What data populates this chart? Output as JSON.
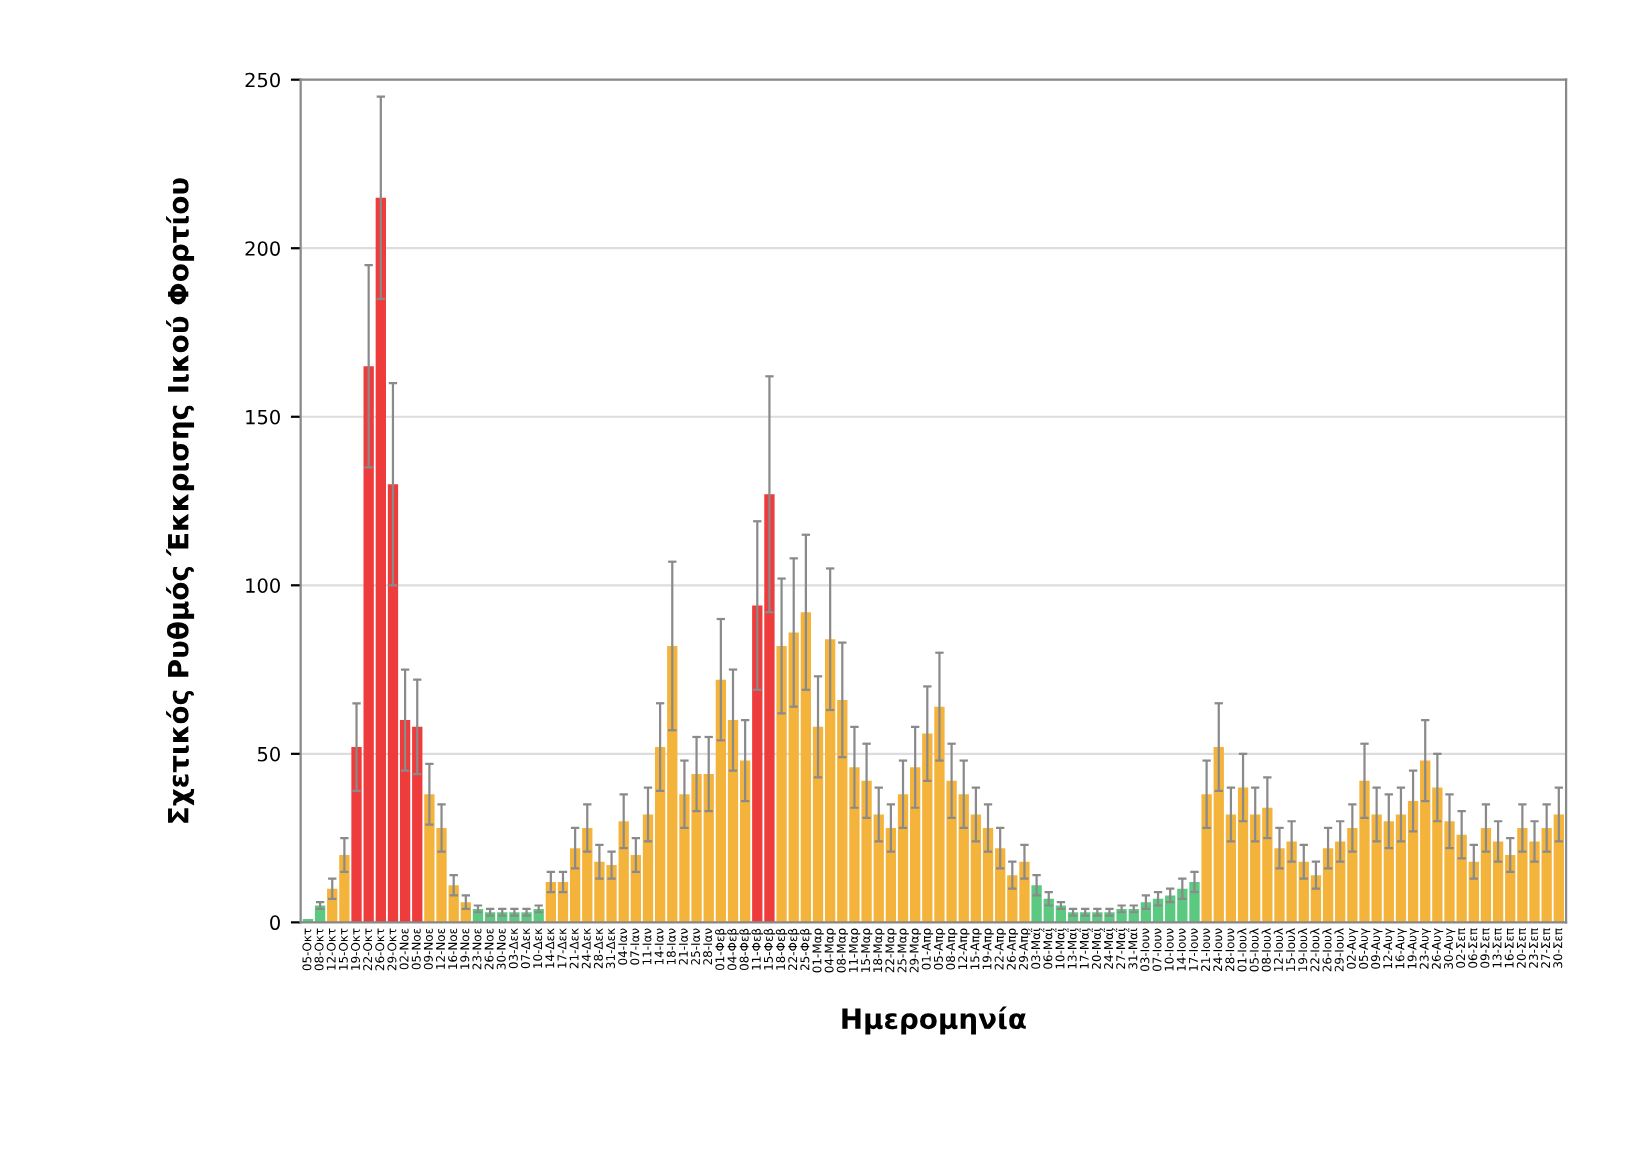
{
  "chart_data": {
    "type": "bar",
    "ylabel": "Σχετικός Ρυθμός Έκκρισης Ιικού Φορτίου",
    "xlabel": "Ημερομηνία",
    "categories": [
      "05-Οκτ",
      "08-Οκτ",
      "12-Οκτ",
      "15-Οκτ",
      "19-Οκτ",
      "22-Οκτ",
      "26-Οκτ",
      "29-Οκτ",
      "02-Νοε",
      "05-Νοε",
      "09-Νοε",
      "12-Νοε",
      "16-Νοε",
      "19-Νοε",
      "23-Νοε",
      "26-Νοε",
      "30-Νοε",
      "03-Δεκ",
      "07-Δεκ",
      "10-Δεκ",
      "14-Δεκ",
      "17-Δεκ",
      "21-Δεκ",
      "24-Δεκ",
      "28-Δεκ",
      "31-Δεκ",
      "04-Ιαν",
      "07-Ιαν",
      "11-Ιαν",
      "14-Ιαν",
      "18-Ιαν",
      "21-Ιαν",
      "25-Ιαν",
      "28-Ιαν",
      "01-Φεβ",
      "04-Φεβ",
      "08-Φεβ",
      "11-Φεβ",
      "15-Φεβ",
      "18-Φεβ",
      "22-Φεβ",
      "25-Φεβ",
      "01-Μαρ",
      "04-Μαρ",
      "08-Μαρ",
      "11-Μαρ",
      "15-Μαρ",
      "18-Μαρ",
      "22-Μαρ",
      "25-Μαρ",
      "29-Μαρ",
      "01-Απρ",
      "05-Απρ",
      "08-Απρ",
      "12-Απρ",
      "15-Απρ",
      "19-Απρ",
      "22-Απρ",
      "26-Απρ",
      "29-Απρ",
      "03-Μαΐ",
      "06-Μαΐ",
      "10-Μαΐ",
      "13-Μαΐ",
      "17-Μαΐ",
      "20-Μαΐ",
      "24-Μαΐ",
      "27-Μαΐ",
      "31-Μαΐ",
      "03-Ιουν",
      "07-Ιουν",
      "10-Ιουν",
      "14-Ιουν",
      "17-Ιουν",
      "21-Ιουν",
      "24-Ιουν",
      "28-Ιουν",
      "01-Ιουλ",
      "05-Ιουλ",
      "08-Ιουλ",
      "12-Ιουλ",
      "15-Ιουλ",
      "19-Ιουλ",
      "22-Ιουλ",
      "26-Ιουλ",
      "29-Ιουλ",
      "02-Αυγ",
      "05-Αυγ",
      "09-Αυγ",
      "12-Αυγ",
      "16-Αυγ",
      "19-Αυγ",
      "23-Αυγ",
      "26-Αυγ",
      "30-Αυγ",
      "02-Σεπ",
      "06-Σεπ",
      "09-Σεπ",
      "13-Σεπ",
      "16-Σεπ",
      "20-Σεπ",
      "23-Σεπ",
      "27-Σεπ",
      "30-Σεπ"
    ],
    "values": [
      1,
      5,
      10,
      20,
      52,
      165,
      215,
      130,
      60,
      58,
      38,
      28,
      11,
      6,
      4,
      3,
      3,
      3,
      3,
      4,
      12,
      12,
      22,
      28,
      18,
      17,
      30,
      20,
      32,
      52,
      82,
      38,
      44,
      44,
      72,
      60,
      48,
      94,
      127,
      82,
      86,
      92,
      58,
      84,
      66,
      46,
      42,
      32,
      28,
      38,
      46,
      56,
      64,
      42,
      38,
      32,
      28,
      22,
      14,
      18,
      11,
      7,
      5,
      3,
      3,
      3,
      3,
      4,
      4,
      6,
      7,
      8,
      10,
      12,
      38,
      52,
      32,
      40,
      32,
      34,
      22,
      24,
      18,
      14,
      22,
      24,
      28,
      42,
      32,
      30,
      32,
      36,
      48,
      40,
      30,
      26,
      18,
      28,
      24,
      20,
      28,
      24,
      28,
      32
    ],
    "errors": [
      null,
      1,
      3,
      5,
      13,
      30,
      30,
      30,
      15,
      14,
      9,
      7,
      3,
      2,
      1,
      1,
      1,
      1,
      1,
      1,
      3,
      3,
      6,
      7,
      5,
      4,
      8,
      5,
      8,
      13,
      25,
      10,
      11,
      11,
      18,
      15,
      12,
      25,
      35,
      20,
      22,
      23,
      15,
      21,
      17,
      12,
      11,
      8,
      7,
      10,
      12,
      14,
      16,
      11,
      10,
      8,
      7,
      6,
      4,
      5,
      3,
      2,
      1,
      1,
      1,
      1,
      1,
      1,
      1,
      2,
      2,
      2,
      3,
      3,
      10,
      13,
      8,
      10,
      8,
      9,
      6,
      6,
      5,
      4,
      6,
      6,
      7,
      11,
      8,
      8,
      8,
      9,
      12,
      10,
      8,
      7,
      5,
      7,
      6,
      5,
      7,
      6,
      7,
      8
    ],
    "colors": [
      "#5cc981",
      "#5cc981",
      "#f4b43c",
      "#f4b43c",
      "#ee3b3b",
      "#ee3b3b",
      "#ee3b3b",
      "#ee3b3b",
      "#ee3b3b",
      "#ee3b3b",
      "#f4b43c",
      "#f4b43c",
      "#f4b43c",
      "#f4b43c",
      "#5cc981",
      "#5cc981",
      "#5cc981",
      "#5cc981",
      "#5cc981",
      "#5cc981",
      "#f4b43c",
      "#f4b43c",
      "#f4b43c",
      "#f4b43c",
      "#f4b43c",
      "#f4b43c",
      "#f4b43c",
      "#f4b43c",
      "#f4b43c",
      "#f4b43c",
      "#f4b43c",
      "#f4b43c",
      "#f4b43c",
      "#f4b43c",
      "#f4b43c",
      "#f4b43c",
      "#f4b43c",
      "#ee3b3b",
      "#ee3b3b",
      "#f4b43c",
      "#f4b43c",
      "#f4b43c",
      "#f4b43c",
      "#f4b43c",
      "#f4b43c",
      "#f4b43c",
      "#f4b43c",
      "#f4b43c",
      "#f4b43c",
      "#f4b43c",
      "#f4b43c",
      "#f4b43c",
      "#f4b43c",
      "#f4b43c",
      "#f4b43c",
      "#f4b43c",
      "#f4b43c",
      "#f4b43c",
      "#f4b43c",
      "#f4b43c",
      "#5cc981",
      "#5cc981",
      "#5cc981",
      "#5cc981",
      "#5cc981",
      "#5cc981",
      "#5cc981",
      "#5cc981",
      "#5cc981",
      "#5cc981",
      "#5cc981",
      "#5cc981",
      "#5cc981",
      "#5cc981",
      "#f4b43c",
      "#f4b43c",
      "#f4b43c",
      "#f4b43c",
      "#f4b43c",
      "#f4b43c",
      "#f4b43c",
      "#f4b43c",
      "#f4b43c",
      "#f4b43c",
      "#f4b43c",
      "#f4b43c",
      "#f4b43c",
      "#f4b43c",
      "#f4b43c",
      "#f4b43c",
      "#f4b43c",
      "#f4b43c",
      "#f4b43c",
      "#f4b43c",
      "#f4b43c",
      "#f4b43c",
      "#f4b43c",
      "#f4b43c",
      "#f4b43c",
      "#f4b43c",
      "#f4b43c",
      "#f4b43c",
      "#f4b43c",
      "#f4b43c"
    ],
    "ylim": [
      0,
      250
    ],
    "yticks": [
      0,
      50,
      100,
      150,
      200,
      250
    ],
    "grid": "y"
  }
}
